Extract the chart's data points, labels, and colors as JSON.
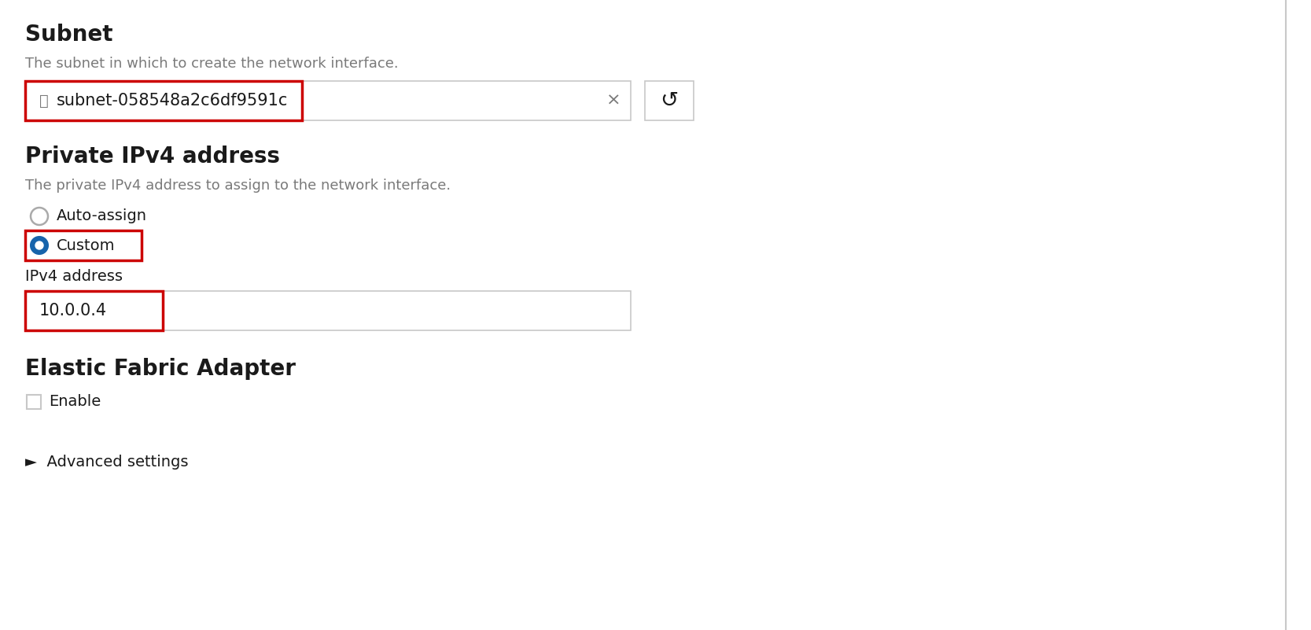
{
  "bg_color": "#f0f0f0",
  "panel_bg": "#ffffff",
  "border_color": "#c8c8c8",
  "red_border_color": "#cc0000",
  "text_dark": "#1a1a1a",
  "text_gray": "#7a7a7a",
  "radio_blue": "#1764ab",
  "title_subnet": "Subnet",
  "subtitle_subnet": "The subnet in which to create the network interface.",
  "subnet_value": "subnet-058548a2c6df9591c",
  "title_ipv4": "Private IPv4 address",
  "subtitle_ipv4": "The private IPv4 address to assign to the network interface.",
  "radio_auto": "Auto-assign",
  "radio_custom": "Custom",
  "ipv4_label": "IPv4 address",
  "ipv4_value": "10.0.0.4",
  "efa_title": "Elastic Fabric Adapter",
  "enable_label": "Enable",
  "advanced_label": "►  Advanced settings",
  "outer_border_color": "#c8c8c8",
  "right_border_color": "#c8c8c8"
}
